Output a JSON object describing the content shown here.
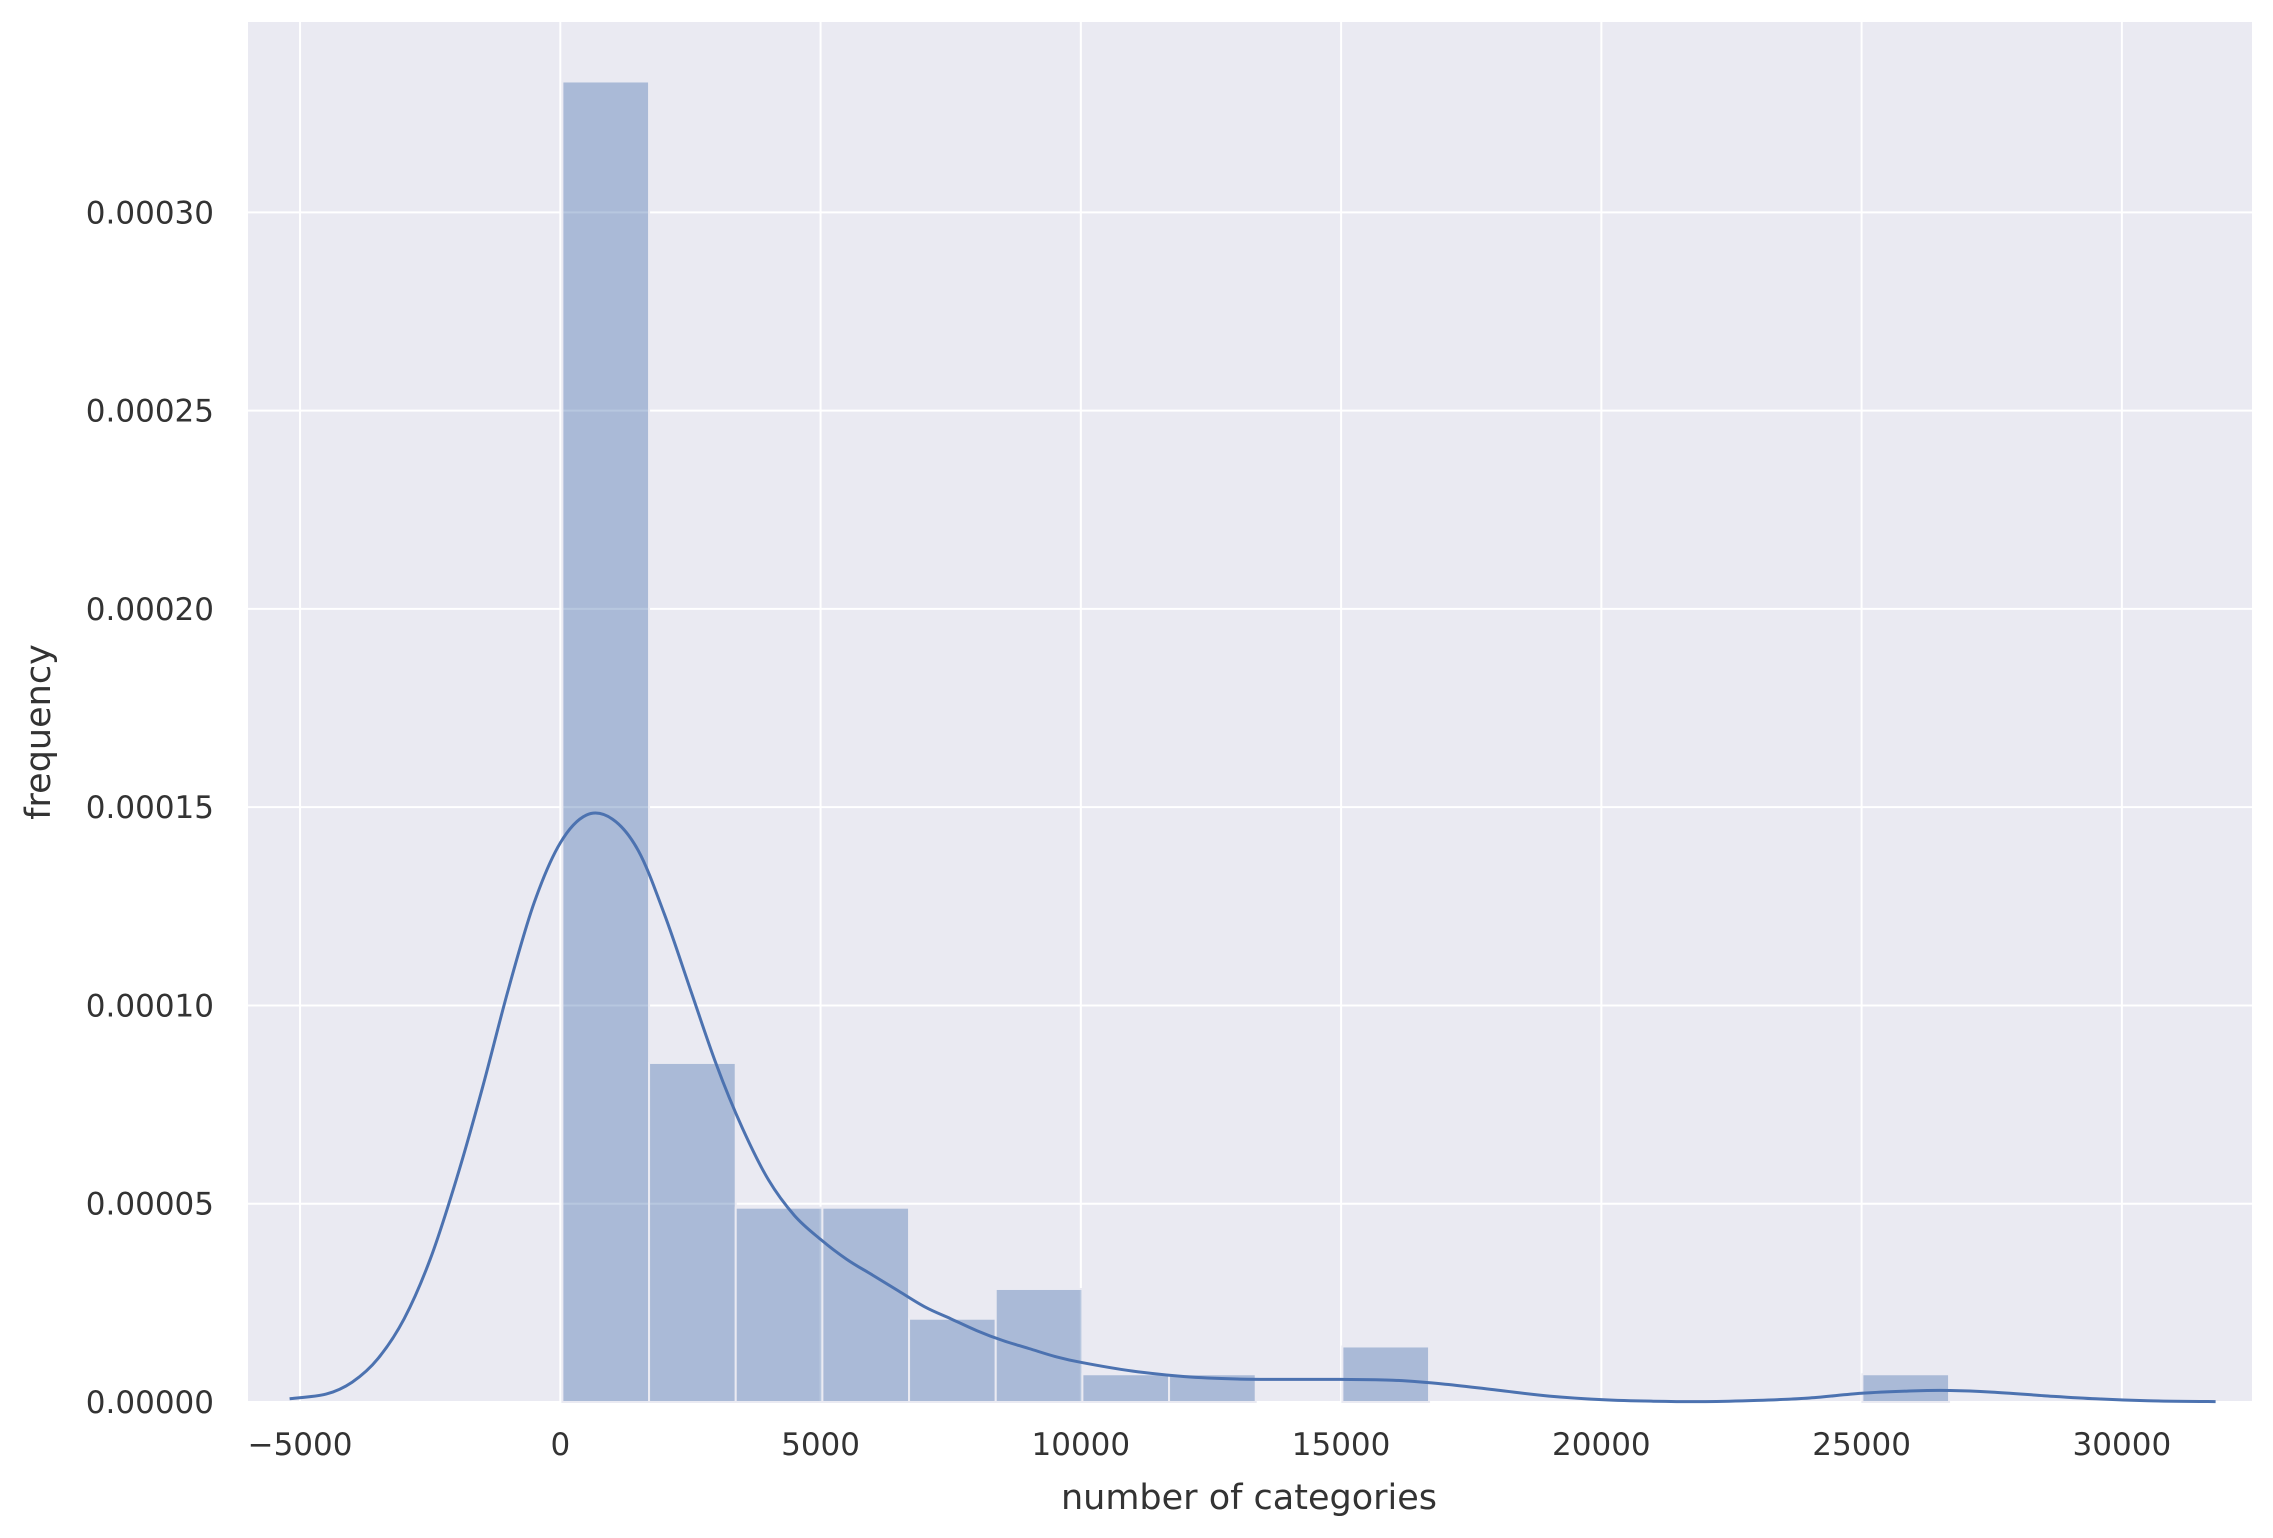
{
  "chart_data": {
    "type": "bar",
    "title": "",
    "xlabel": "number of categories",
    "ylabel": "frequency",
    "xlim": [
      -6000,
      32500
    ],
    "ylim": [
      0,
      0.000348
    ],
    "grid": true,
    "background_color": "#eaeaf2",
    "grid_color": "#ffffff",
    "bar_color": "#4c72b0",
    "bar_opacity": 0.4,
    "kde_color": "#4c72b0",
    "xticks": [
      -5000,
      0,
      5000,
      10000,
      15000,
      20000,
      25000,
      30000
    ],
    "xtick_labels": [
      "−5000",
      "0",
      "5000",
      "10000",
      "15000",
      "20000",
      "25000",
      "30000"
    ],
    "yticks": [
      0,
      5e-05,
      0.0001,
      0.00015,
      0.0002,
      0.00025,
      0.0003
    ],
    "ytick_labels": [
      "0.00000",
      "0.00005",
      "0.00010",
      "0.00015",
      "0.00020",
      "0.00025",
      "0.00030"
    ],
    "histogram": {
      "bin_edges": [
        40,
        1705,
        3370,
        5035,
        6700,
        8365,
        10030,
        11695,
        13360,
        15025,
        16690,
        18355,
        20020,
        21685,
        23350,
        25015,
        26680
      ],
      "values": [
        0.000333,
        8.55e-05,
        4.9e-05,
        4.9e-05,
        2.1e-05,
        2.85e-05,
        7e-06,
        7e-06,
        0,
        1.4e-05,
        0,
        0,
        0,
        0,
        0,
        7e-06
      ]
    },
    "kde": {
      "x": [
        -5200,
        -4500,
        -4000,
        -3500,
        -3000,
        -2500,
        -2000,
        -1500,
        -1000,
        -500,
        0,
        500,
        1000,
        1500,
        2000,
        2500,
        3000,
        3500,
        4000,
        4500,
        5000,
        5500,
        6000,
        6500,
        7000,
        7500,
        8000,
        8500,
        9000,
        9500,
        10000,
        11000,
        12000,
        13000,
        14000,
        15000,
        16000,
        17000,
        18000,
        19000,
        20000,
        21000,
        22000,
        23000,
        24000,
        25000,
        26000,
        26700,
        27500,
        28500,
        29500,
        30500,
        31800
      ],
      "y": [
        8e-07,
        2e-06,
        5e-06,
        1.1e-05,
        2.1e-05,
        3.6e-05,
        5.6e-05,
        7.9e-05,
        0.000104,
        0.000126,
        0.000141,
        0.000148,
        0.000147,
        0.000139,
        0.000123,
        0.000104,
        8.5e-05,
        6.9e-05,
        5.6e-05,
        4.7e-05,
        4.1e-05,
        3.6e-05,
        3.2e-05,
        2.8e-05,
        2.4e-05,
        2.1e-05,
        1.8e-05,
        1.55e-05,
        1.35e-05,
        1.15e-05,
        1e-05,
        7.8e-06,
        6.4e-06,
        5.8e-06,
        5.7e-06,
        5.7e-06,
        5.5e-06,
        4.5e-06,
        3e-06,
        1.5e-06,
        6e-07,
        2e-07,
        1e-07,
        4e-07,
        1e-06,
        2.2e-06,
        2.8e-06,
        2.9e-06,
        2.5e-06,
        1.6e-06,
        8e-07,
        3e-07,
        1e-07
      ]
    }
  }
}
